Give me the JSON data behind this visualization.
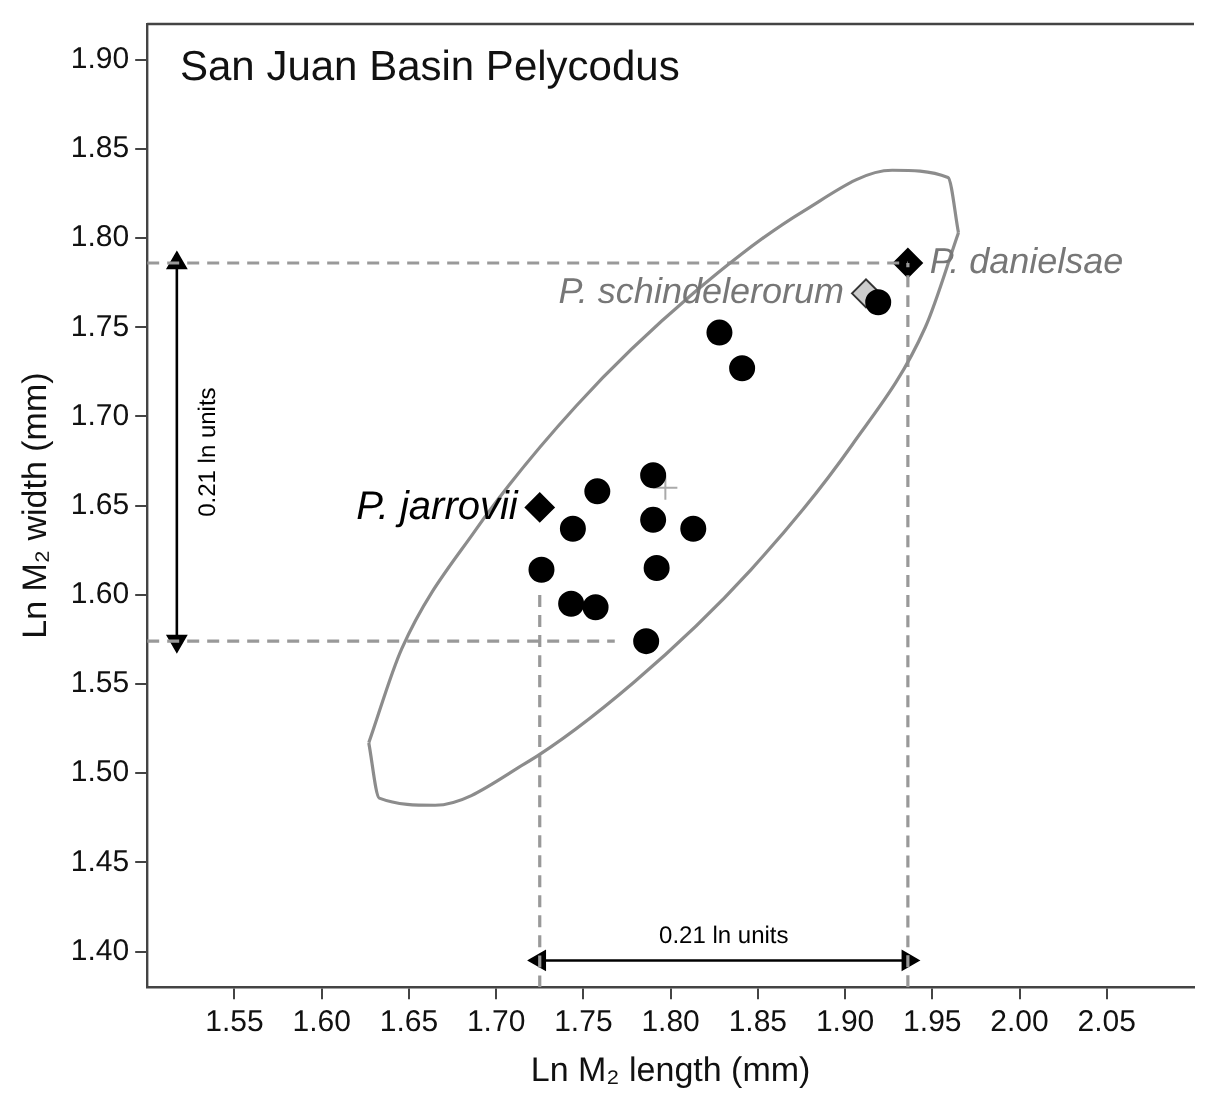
{
  "chart_data": {
    "type": "scatter",
    "title": "San Juan Basin Pelycodus",
    "xlabel": "Ln M₂ length (mm)",
    "ylabel": "Ln M₂ width (mm)",
    "xlim": [
      1.5,
      2.1
    ],
    "ylim": [
      1.38,
      1.92
    ],
    "xticks": [
      {
        "value": 1.55,
        "label": "1.55"
      },
      {
        "value": 1.6,
        "label": "1.60"
      },
      {
        "value": 1.65,
        "label": "1.65"
      },
      {
        "value": 1.7,
        "label": "1.70"
      },
      {
        "value": 1.75,
        "label": "1.75"
      },
      {
        "value": 1.8,
        "label": "1.80"
      },
      {
        "value": 1.85,
        "label": "1.85"
      },
      {
        "value": 1.9,
        "label": "1.90"
      },
      {
        "value": 1.95,
        "label": "1.95"
      },
      {
        "value": 2.0,
        "label": "2.00"
      },
      {
        "value": 2.05,
        "label": "2.05"
      }
    ],
    "yticks": [
      {
        "value": 1.4,
        "label": "1.40"
      },
      {
        "value": 1.45,
        "label": "1.45"
      },
      {
        "value": 1.5,
        "label": "1.50"
      },
      {
        "value": 1.55,
        "label": "1.55"
      },
      {
        "value": 1.6,
        "label": "1.60"
      },
      {
        "value": 1.65,
        "label": "1.65"
      },
      {
        "value": 1.7,
        "label": "1.70"
      },
      {
        "value": 1.75,
        "label": "1.75"
      },
      {
        "value": 1.8,
        "label": "1.80"
      },
      {
        "value": 1.85,
        "label": "1.85"
      },
      {
        "value": 1.9,
        "label": "1.90"
      }
    ],
    "grid": false,
    "legend": false,
    "series": [
      {
        "type": "line",
        "color": "#8c8c8c",
        "marker": "none",
        "line_style": "solid",
        "x": [
          1.627,
          1.646,
          1.688,
          1.746,
          1.813,
          1.876,
          1.927,
          1.959,
          1.965
        ],
        "values": [
          1.517,
          1.57,
          1.636,
          1.706,
          1.769,
          1.815,
          1.838,
          1.834,
          1.803
        ]
      },
      {
        "type": "line",
        "color": "#8c8c8c",
        "marker": "none",
        "line_style": "solid",
        "x": [
          1.627,
          1.633,
          1.665,
          1.716,
          1.779,
          1.846,
          1.904,
          1.946,
          1.965
        ],
        "values": [
          1.517,
          1.486,
          1.482,
          1.505,
          1.551,
          1.614,
          1.684,
          1.75,
          1.803
        ]
      },
      {
        "type": "line",
        "color": "#999999",
        "marker": "none",
        "line_style": "dashed",
        "x": [
          1.5,
          1.936
        ],
        "values": [
          1.786,
          1.786
        ]
      },
      {
        "type": "line",
        "color": "#999999",
        "marker": "none",
        "line_style": "dashed",
        "x": [
          1.5,
          1.768
        ],
        "values": [
          1.574,
          1.574
        ]
      },
      {
        "type": "line",
        "color": "#999999",
        "marker": "none",
        "line_style": "dashed",
        "x": [
          1.725,
          1.725
        ],
        "values": [
          1.38,
          1.6
        ]
      },
      {
        "type": "line",
        "color": "#999999",
        "marker": "none",
        "line_style": "dashed",
        "x": [
          1.936,
          1.936
        ],
        "values": [
          1.38,
          1.786
        ]
      },
      {
        "type": "line",
        "color": "#000000",
        "marker": "triangle",
        "line_style": "solid",
        "x": [
          1.517,
          1.517
        ],
        "values": [
          1.786,
          1.574
        ]
      },
      {
        "type": "line",
        "color": "#000000",
        "marker": "triangle",
        "line_style": "solid",
        "x": [
          1.725,
          1.936
        ],
        "values": [
          1.395,
          1.395
        ]
      },
      {
        "type": "scatter",
        "color": "#000000",
        "marker": "circle",
        "x": [
          1.828,
          1.841,
          1.79,
          1.758,
          1.744,
          1.79,
          1.813,
          1.726,
          1.792,
          1.743,
          1.757,
          1.786,
          1.919
        ],
        "values": [
          1.747,
          1.727,
          1.667,
          1.658,
          1.637,
          1.642,
          1.637,
          1.614,
          1.615,
          1.595,
          1.593,
          1.574,
          1.764
        ]
      },
      {
        "type": "scatter",
        "color": "#aaaaaa",
        "marker": "cross",
        "x": [
          1.797
        ],
        "values": [
          1.66
        ]
      },
      {
        "name": "P. jarrovii",
        "type": "scatter",
        "color": "#000000",
        "marker": "diamond",
        "x": [
          1.725
        ],
        "values": [
          1.649
        ]
      },
      {
        "name": "P. schindelerorum",
        "type": "scatter",
        "color": "#cccccc",
        "marker": "diamond",
        "x": [
          1.912
        ],
        "values": [
          1.769
        ]
      },
      {
        "name": "P. danielsae",
        "type": "scatter",
        "color": "#000000",
        "marker": "diamond",
        "x": [
          1.936
        ],
        "values": [
          1.786
        ]
      }
    ],
    "annotations": [
      "0.21 ln units",
      "0.21 ln units"
    ]
  }
}
